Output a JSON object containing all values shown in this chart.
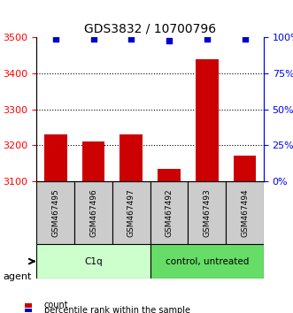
{
  "title": "GDS3832 / 10700796",
  "samples": [
    "GSM467495",
    "GSM467496",
    "GSM467497",
    "GSM467492",
    "GSM467493",
    "GSM467494"
  ],
  "counts": [
    3230,
    3210,
    3230,
    3135,
    3440,
    3170
  ],
  "percentiles": [
    99,
    99,
    99,
    98,
    99,
    99
  ],
  "ylim_left": [
    3100,
    3500
  ],
  "ylim_right": [
    0,
    100
  ],
  "yticks_left": [
    3100,
    3200,
    3300,
    3400,
    3500
  ],
  "yticks_right": [
    0,
    25,
    50,
    75,
    100
  ],
  "bar_color": "#cc0000",
  "dot_color": "#0000cc",
  "groups": [
    {
      "label": "C1q",
      "indices": [
        0,
        1,
        2
      ],
      "color": "#ccffcc"
    },
    {
      "label": "control, untreated",
      "indices": [
        3,
        4,
        5
      ],
      "color": "#66dd66"
    }
  ],
  "group_bar_bg": "#cccccc",
  "agent_label": "agent",
  "legend_count_label": "count",
  "legend_percentile_label": "percentile rank within the sample",
  "grid_linestyle": "dotted",
  "grid_color": "#000000"
}
